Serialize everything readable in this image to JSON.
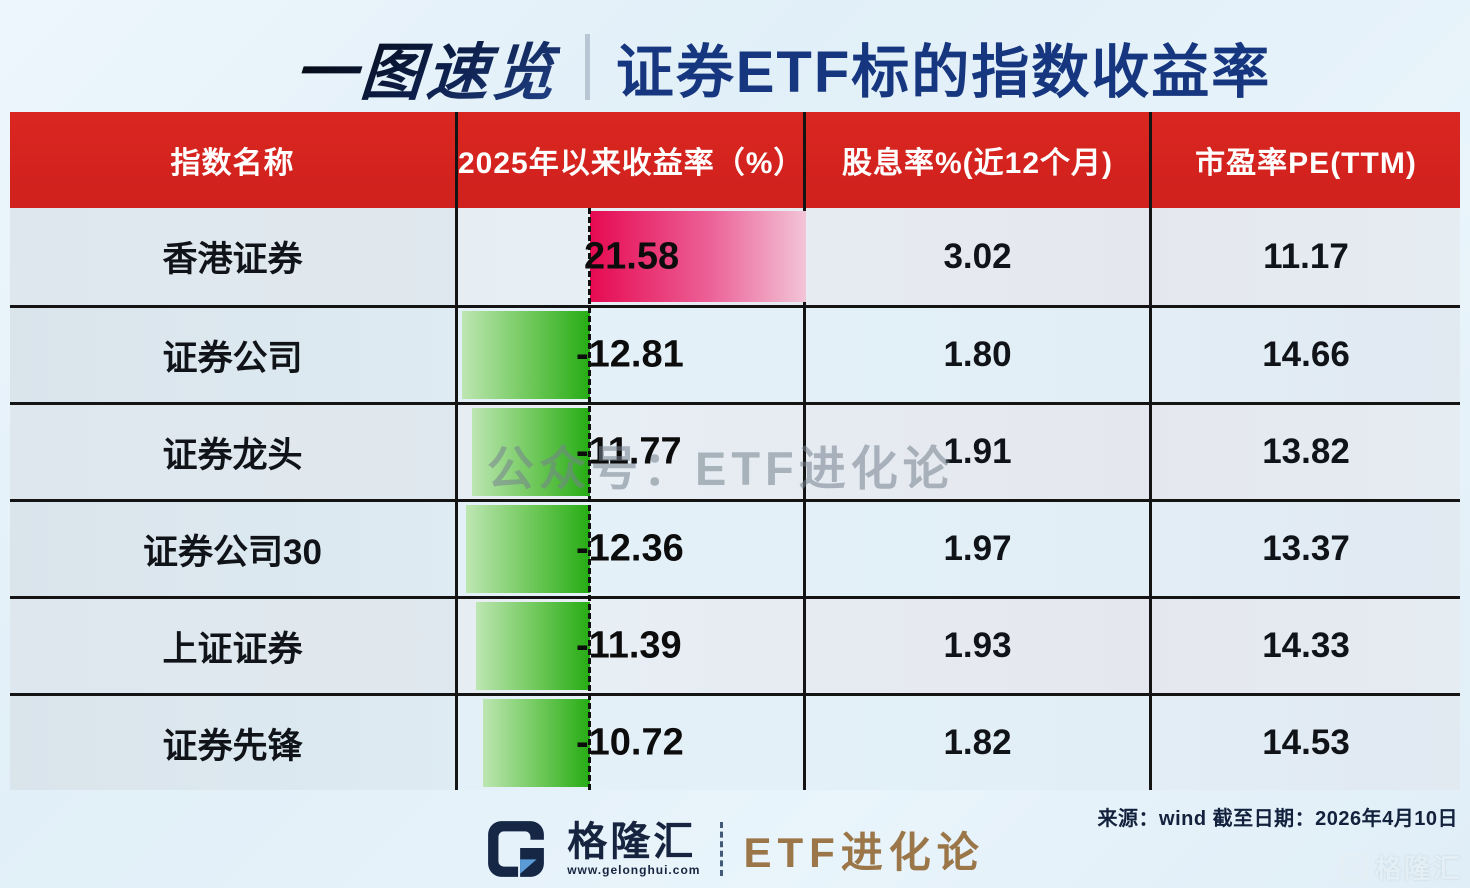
{
  "title": {
    "badge": "一图速览",
    "main": "证券ETF标的指数收益率"
  },
  "watermark": "公众号：ETF进化论",
  "table": {
    "headers": [
      "指数名称",
      "2025年以来收益率（%）",
      "股息率%(近12个月)",
      "市盈率PE(TTM)"
    ],
    "rows": [
      {
        "name": "香港证券",
        "return_label": "21.58",
        "dividend": "3.02",
        "pe": "11.17"
      },
      {
        "name": "证券公司",
        "return_label": "-12.81",
        "dividend": "1.80",
        "pe": "14.66"
      },
      {
        "name": "证券龙头",
        "return_label": "-11.77",
        "dividend": "1.91",
        "pe": "13.82"
      },
      {
        "name": "证券公司30",
        "return_label": "-12.36",
        "dividend": "1.97",
        "pe": "13.37"
      },
      {
        "name": "上证证券",
        "return_label": "-11.39",
        "dividend": "1.93",
        "pe": "14.33"
      },
      {
        "name": "证券先锋",
        "return_label": "-10.72",
        "dividend": "1.82",
        "pe": "14.53"
      }
    ]
  },
  "chart_data": {
    "type": "bar",
    "orientation": "horizontal",
    "title": "2025年以来收益率（%）",
    "categories": [
      "香港证券",
      "证券公司",
      "证券龙头",
      "证券公司30",
      "上证证券",
      "证券先锋"
    ],
    "values": [
      21.58,
      -12.81,
      -11.77,
      -12.36,
      -11.39,
      -10.72
    ],
    "series": [
      {
        "name": "股息率%(近12个月)",
        "values": [
          3.02,
          1.8,
          1.91,
          1.97,
          1.93,
          1.82
        ]
      },
      {
        "name": "市盈率PE(TTM)",
        "values": [
          11.17,
          14.66,
          13.82,
          13.37,
          14.33,
          14.53
        ]
      }
    ],
    "xlim": [
      -13.2,
      21.6
    ],
    "grid": false,
    "zero_line": "dashed",
    "positive_color": "#e60a52",
    "negative_color": "#26ac14"
  },
  "footer": {
    "source": "来源：wind 截至日期：2026年4月10日",
    "brand": "格隆汇",
    "brand_url": "www.gelonghui.com",
    "channel": "ETF进化论",
    "corner_g": "G",
    "corner_brand": "格隆汇"
  },
  "colors": {
    "header_bg": "#d62522",
    "title_navy": "#16377f",
    "channel_gold": "#9a7648",
    "watermark_gray": "#76838f"
  }
}
